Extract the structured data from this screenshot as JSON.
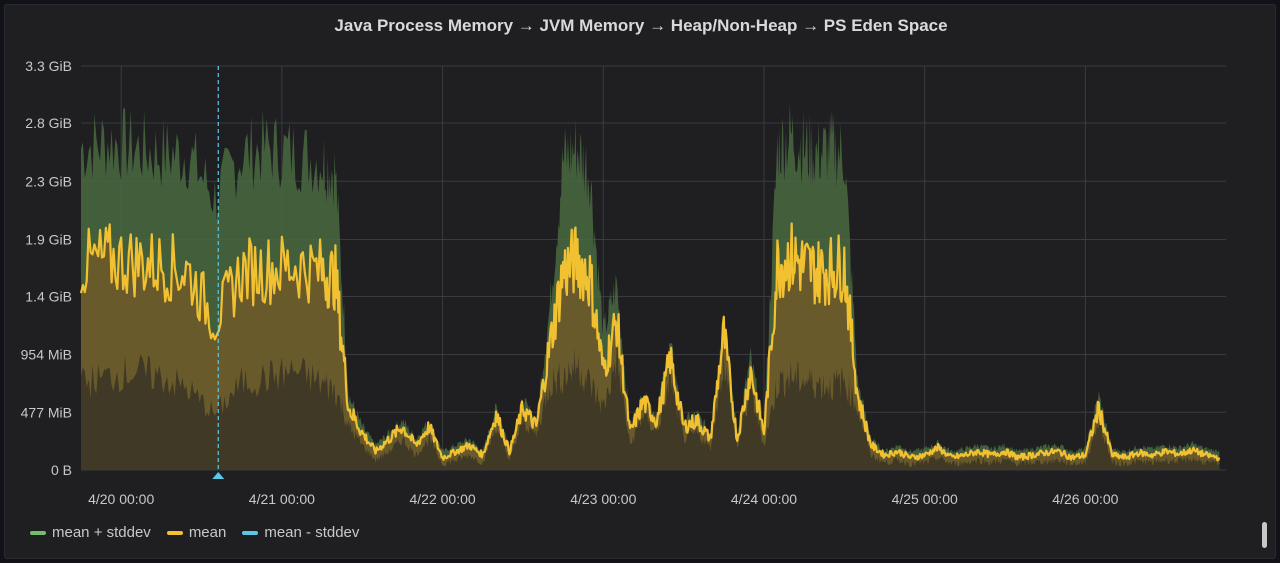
{
  "panel": {
    "title": "Java Process Memory → JVM Memory → Heap/Non-Heap → PS Eden Space"
  },
  "colors": {
    "background": "#1f1f22",
    "grid": "#3a3b40",
    "mean": "#f2c132",
    "mean_fill": "#6b5a2a",
    "upper_fill": "#4a6a3f",
    "lower": "#5ac8e8",
    "text": "#c7c8ca"
  },
  "legend": [
    {
      "label": "mean + stddev",
      "color": "#73bf69"
    },
    {
      "label": "mean",
      "color": "#f2c132"
    },
    {
      "label": "mean - stddev",
      "color": "#5ac8e8"
    }
  ],
  "chart_data": {
    "type": "area",
    "title": "Java Process Memory → JVM Memory → Heap/Non-Heap → PS Eden Space",
    "y_unit": "GiB",
    "yticks": [
      "0 B",
      "477 MiB",
      "954 MiB",
      "1.4 GiB",
      "1.9 GiB",
      "2.3 GiB",
      "2.8 GiB",
      "3.3 GiB"
    ],
    "ytick_values": [
      0,
      0.466,
      0.932,
      1.4,
      1.86,
      2.33,
      2.8,
      3.26
    ],
    "ylim": [
      0,
      3.26
    ],
    "xticks": [
      "4/20 00:00",
      "4/21 00:00",
      "4/22 00:00",
      "4/23 00:00",
      "4/24 00:00",
      "4/25 00:00",
      "4/26 00:00"
    ],
    "x_start": "2021-04-19 18:00",
    "x_end": "2021-04-26 21:00",
    "grid": true,
    "legend_position": "bottom-left",
    "crosshair_time": "4/20 14:30",
    "series": [
      {
        "name": "mean",
        "x_hours": [
          0,
          4,
          8,
          12,
          16,
          20,
          24,
          28,
          32,
          36,
          38,
          40,
          42,
          44,
          46,
          48,
          50,
          52,
          54,
          56,
          58,
          60,
          62,
          64,
          66,
          68,
          70,
          72,
          74,
          76,
          78,
          80,
          82,
          84,
          86,
          88,
          90,
          92,
          94,
          96,
          98,
          100,
          102,
          104,
          106,
          108,
          110,
          112,
          114,
          116,
          118,
          120,
          122,
          124,
          126,
          128,
          130,
          132,
          134,
          136,
          138,
          140,
          142,
          144,
          146,
          148,
          150,
          152,
          154,
          156,
          158,
          160,
          162,
          164,
          166,
          168,
          170
        ],
        "values": [
          1.65,
          1.7,
          1.68,
          1.65,
          1.6,
          1.2,
          1.6,
          1.62,
          1.65,
          1.6,
          1.55,
          0.5,
          0.3,
          0.15,
          0.25,
          0.35,
          0.2,
          0.35,
          0.1,
          0.15,
          0.2,
          0.12,
          0.45,
          0.15,
          0.5,
          0.35,
          1.0,
          1.6,
          1.7,
          1.55,
          0.8,
          1.2,
          0.3,
          0.55,
          0.4,
          0.9,
          0.35,
          0.4,
          0.25,
          1.1,
          0.25,
          0.8,
          0.3,
          1.65,
          1.72,
          1.65,
          1.6,
          1.62,
          1.65,
          0.6,
          0.2,
          0.12,
          0.15,
          0.1,
          0.12,
          0.18,
          0.1,
          0.12,
          0.15,
          0.12,
          0.15,
          0.1,
          0.12,
          0.14,
          0.15,
          0.1,
          0.12,
          0.5,
          0.12,
          0.1,
          0.14,
          0.12,
          0.15,
          0.13,
          0.16,
          0.12,
          0.1
        ],
        "color": "#f2c132"
      },
      {
        "name": "mean + stddev",
        "x_hours": [
          0,
          4,
          8,
          12,
          16,
          20,
          24,
          28,
          32,
          36,
          38,
          40,
          42,
          44,
          46,
          48,
          50,
          52,
          54,
          56,
          58,
          60,
          62,
          64,
          66,
          68,
          70,
          72,
          74,
          76,
          78,
          80,
          82,
          84,
          86,
          88,
          90,
          92,
          94,
          96,
          98,
          100,
          102,
          104,
          106,
          108,
          110,
          112,
          114,
          116,
          118,
          120,
          122,
          124,
          126,
          128,
          130,
          132,
          134,
          136,
          138,
          140,
          142,
          144,
          146,
          148,
          150,
          152,
          154,
          156,
          158,
          160,
          162,
          164,
          166,
          168,
          170
        ],
        "values": [
          2.6,
          2.65,
          2.6,
          2.55,
          2.55,
          2.2,
          2.55,
          2.6,
          2.55,
          2.5,
          2.4,
          0.6,
          0.35,
          0.2,
          0.3,
          0.4,
          0.25,
          0.4,
          0.15,
          0.2,
          0.25,
          0.15,
          0.5,
          0.2,
          0.55,
          0.4,
          1.3,
          2.5,
          2.6,
          2.4,
          1.1,
          1.5,
          0.35,
          0.6,
          0.45,
          1.0,
          0.4,
          0.45,
          0.3,
          1.2,
          0.3,
          0.9,
          0.35,
          2.6,
          2.7,
          2.6,
          2.55,
          2.6,
          2.55,
          0.7,
          0.25,
          0.15,
          0.2,
          0.15,
          0.17,
          0.22,
          0.15,
          0.17,
          0.2,
          0.17,
          0.2,
          0.15,
          0.17,
          0.19,
          0.2,
          0.15,
          0.17,
          0.6,
          0.17,
          0.15,
          0.19,
          0.17,
          0.2,
          0.18,
          0.21,
          0.17,
          0.15
        ],
        "color": "#73bf69"
      },
      {
        "name": "mean - stddev",
        "x_hours": [
          0,
          4,
          8,
          12,
          16,
          20,
          24,
          28,
          32,
          36,
          38,
          40,
          42,
          44,
          46,
          48,
          50,
          52,
          54,
          56,
          58,
          60,
          62,
          64,
          66,
          68,
          70,
          72,
          74,
          76,
          78,
          80,
          82,
          84,
          86,
          88,
          90,
          92,
          94,
          96,
          98,
          100,
          102,
          104,
          106,
          108,
          110,
          112,
          114,
          116,
          118,
          120,
          122,
          124,
          126,
          128,
          130,
          132,
          134,
          136,
          138,
          140,
          142,
          144,
          146,
          148,
          150,
          152,
          154,
          156,
          158,
          160,
          162,
          164,
          166,
          168,
          170
        ],
        "values": [
          0.7,
          0.75,
          0.8,
          0.75,
          0.65,
          0.45,
          0.7,
          0.75,
          0.8,
          0.7,
          0.65,
          0.35,
          0.2,
          0.08,
          0.15,
          0.25,
          0.12,
          0.25,
          0.05,
          0.08,
          0.12,
          0.06,
          0.35,
          0.08,
          0.4,
          0.28,
          0.7,
          0.75,
          0.85,
          0.7,
          0.5,
          0.9,
          0.2,
          0.45,
          0.3,
          0.75,
          0.25,
          0.3,
          0.18,
          0.9,
          0.18,
          0.65,
          0.2,
          0.7,
          0.75,
          0.72,
          0.7,
          0.68,
          0.72,
          0.5,
          0.12,
          0.06,
          0.08,
          0.05,
          0.06,
          0.1,
          0.05,
          0.06,
          0.08,
          0.06,
          0.08,
          0.05,
          0.06,
          0.07,
          0.08,
          0.05,
          0.06,
          0.4,
          0.06,
          0.05,
          0.07,
          0.06,
          0.08,
          0.07,
          0.09,
          0.06,
          0.05
        ],
        "color": "#5ac8e8"
      }
    ]
  }
}
